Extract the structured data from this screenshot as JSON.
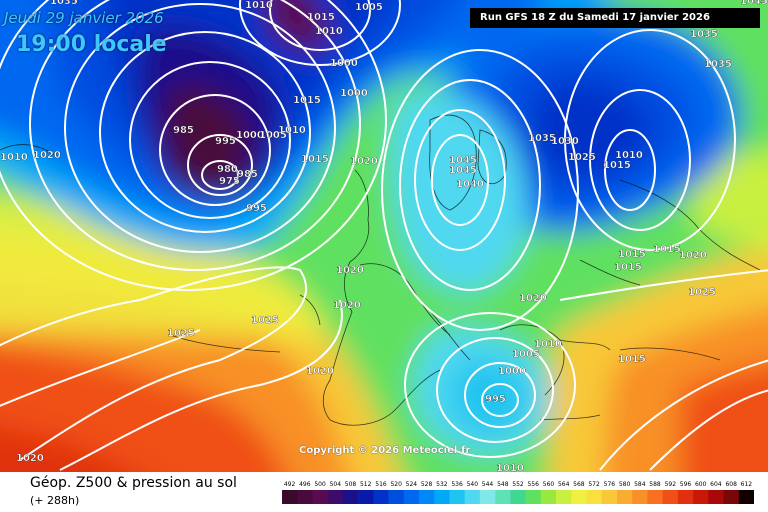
{
  "header": {
    "date": "Jeudi 29 janvier 2026",
    "time": "19:00 locale",
    "run": "Run GFS 18 Z du Samedi 17 janvier 2026"
  },
  "copyright": "Copyright © 2026 Meteociel.fr",
  "footer": {
    "title": "Géop. Z500 & pression au sol",
    "subtitle": "(+ 288h)"
  },
  "legend": {
    "values": [
      "492",
      "496",
      "500",
      "504",
      "508",
      "512",
      "516",
      "520",
      "524",
      "528",
      "532",
      "536",
      "540",
      "544",
      "548",
      "552",
      "556",
      "560",
      "564",
      "568",
      "572",
      "576",
      "580",
      "584",
      "588",
      "592",
      "596",
      "600",
      "604",
      "608",
      "612"
    ],
    "colors": [
      "#3a0a2c",
      "#4a0a3c",
      "#5a0a50",
      "#3c0c6c",
      "#1a108a",
      "#0a1aa8",
      "#0032c8",
      "#004ee0",
      "#0068f0",
      "#0088f8",
      "#00a8f8",
      "#20c4f0",
      "#50d8f0",
      "#80e8e8",
      "#60e0b8",
      "#40d890",
      "#60e060",
      "#98e840",
      "#c8f040",
      "#f0f040",
      "#f8e040",
      "#f8c838",
      "#f8ac30",
      "#f89028",
      "#f87020",
      "#f05018",
      "#e03010",
      "#c81808",
      "#a80808",
      "#780808",
      "#100000"
    ]
  },
  "pressure_labels": [
    {
      "text": "1035"
    },
    {
      "text": "1010"
    },
    {
      "text": "1005"
    },
    {
      "text": "1015"
    },
    {
      "text": "1010"
    },
    {
      "text": "1000"
    },
    {
      "text": "1000"
    },
    {
      "text": "1015"
    },
    {
      "text": "1010"
    },
    {
      "text": "985"
    },
    {
      "text": "995"
    },
    {
      "text": "1000"
    },
    {
      "text": "1005"
    },
    {
      "text": "980"
    },
    {
      "text": "975"
    },
    {
      "text": "985"
    },
    {
      "text": "995"
    },
    {
      "text": "1015"
    },
    {
      "text": "1020"
    },
    {
      "text": "1010"
    },
    {
      "text": "1020"
    },
    {
      "text": "1045"
    },
    {
      "text": "1045"
    },
    {
      "text": "1040"
    },
    {
      "text": "1035"
    },
    {
      "text": "1030"
    },
    {
      "text": "1025"
    },
    {
      "text": "1015"
    },
    {
      "text": "1010"
    },
    {
      "text": "1035"
    },
    {
      "text": "1035"
    },
    {
      "text": "1045"
    },
    {
      "text": "1020"
    },
    {
      "text": "1020"
    },
    {
      "text": "1025"
    },
    {
      "text": "1025"
    },
    {
      "text": "1020"
    },
    {
      "text": "1015"
    },
    {
      "text": "1015"
    },
    {
      "text": "1015"
    },
    {
      "text": "1020"
    },
    {
      "text": "1025"
    },
    {
      "text": "1020"
    },
    {
      "text": "1010"
    },
    {
      "text": "1005"
    },
    {
      "text": "1000"
    },
    {
      "text": "995"
    },
    {
      "text": "1015"
    },
    {
      "text": "1020"
    },
    {
      "text": "1010"
    }
  ]
}
